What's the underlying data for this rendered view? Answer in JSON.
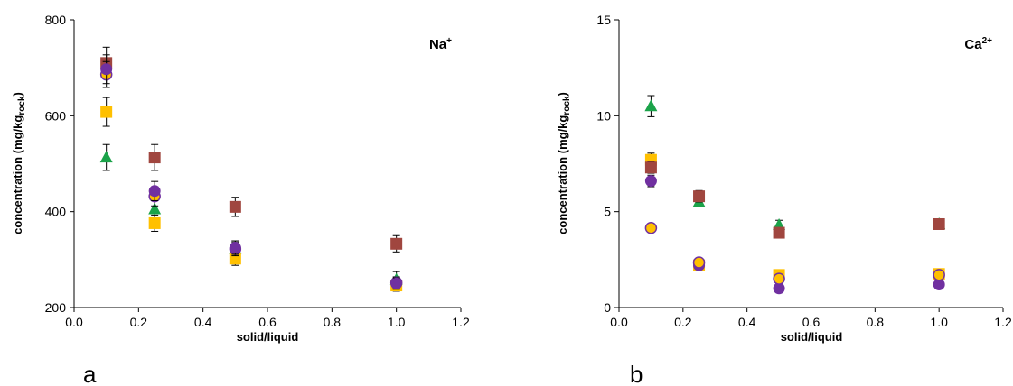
{
  "chart_data": [
    {
      "type": "scatter",
      "panel_label": "a",
      "ion": {
        "base": "Na",
        "sup": "+"
      },
      "xlabel": "solid/liquid",
      "ylabel": {
        "main": "concentration (mg/kg",
        "sub": "rock",
        "close": ")"
      },
      "xlim": [
        0.0,
        1.2
      ],
      "ylim": [
        200,
        800
      ],
      "xticks": [
        0.0,
        0.2,
        0.4,
        0.6,
        0.8,
        1.0,
        1.2
      ],
      "yticks": [
        200,
        400,
        600,
        800
      ],
      "xtick_labels": [
        "0.0",
        "0.2",
        "0.4",
        "0.6",
        "0.8",
        "1.0",
        "1.2"
      ],
      "ytick_labels": [
        "200",
        "400",
        "600",
        "800"
      ],
      "grid": false,
      "series": [
        {
          "color": "#A0463F",
          "marker": "square",
          "points": [
            {
              "x": 0.1,
              "y": 710,
              "err": 33
            },
            {
              "x": 0.25,
              "y": 513,
              "err": 27
            },
            {
              "x": 0.5,
              "y": 410,
              "err": 20
            },
            {
              "x": 1.0,
              "y": 333,
              "err": 17
            }
          ]
        },
        {
          "color": "#1BA34A",
          "marker": "triangle",
          "points": [
            {
              "x": 0.1,
              "y": 513,
              "err": 27
            },
            {
              "x": 0.25,
              "y": 405,
              "err": 20
            },
            {
              "x": 0.5,
              "y": 322,
              "err": 17
            },
            {
              "x": 1.0,
              "y": 258,
              "err": 17
            }
          ]
        },
        {
          "color": "#FFC000",
          "marker": "square",
          "points": [
            {
              "x": 0.1,
              "y": 608,
              "err": 30
            },
            {
              "x": 0.25,
              "y": 376,
              "err": 17
            },
            {
              "x": 0.5,
              "y": 302,
              "err": 14
            },
            {
              "x": 1.0,
              "y": 246,
              "err": 12
            }
          ]
        },
        {
          "color": "#FFC000",
          "stroke": "#7030A0",
          "marker": "circle",
          "points": [
            {
              "x": 0.1,
              "y": 686,
              "err": 27
            },
            {
              "x": 0.25,
              "y": 432,
              "err": 20
            },
            {
              "x": 0.5,
              "y": 322,
              "err": 14
            },
            {
              "x": 1.0,
              "y": 252,
              "err": 12
            }
          ]
        },
        {
          "color": "#7030A0",
          "marker": "circle",
          "points": [
            {
              "x": 0.1,
              "y": 697,
              "err": 30
            },
            {
              "x": 0.25,
              "y": 443,
              "err": 20
            },
            {
              "x": 0.5,
              "y": 325,
              "err": 14
            },
            {
              "x": 1.0,
              "y": 250,
              "err": 12
            }
          ]
        }
      ]
    },
    {
      "type": "scatter",
      "panel_label": "b",
      "ion": {
        "base": "Ca",
        "sup": "2+"
      },
      "xlabel": "solid/liquid",
      "ylabel": {
        "main": "concentration (mg/kg",
        "sub": "rock",
        "close": ")"
      },
      "xlim": [
        0.0,
        1.2
      ],
      "ylim": [
        0,
        15
      ],
      "xticks": [
        0.0,
        0.2,
        0.4,
        0.6,
        0.8,
        1.0,
        1.2
      ],
      "yticks": [
        0,
        5,
        10,
        15
      ],
      "xtick_labels": [
        "0.0",
        "0.2",
        "0.4",
        "0.6",
        "0.8",
        "1.0",
        "1.2"
      ],
      "ytick_labels": [
        "0",
        "5",
        "10",
        "15"
      ],
      "grid": false,
      "series": [
        {
          "color": "#1BA34A",
          "marker": "triangle",
          "points": [
            {
              "x": 0.1,
              "y": 10.5,
              "err": 0.55
            },
            {
              "x": 0.25,
              "y": 5.5,
              "err": 0.25
            },
            {
              "x": 0.5,
              "y": 4.3,
              "err": 0.25
            },
            {
              "x": 1.0,
              "y": 4.35,
              "err": 0.15
            }
          ]
        },
        {
          "color": "#FFC000",
          "marker": "square",
          "points": [
            {
              "x": 0.1,
              "y": 7.7,
              "err": 0.35
            },
            {
              "x": 0.25,
              "y": 2.2,
              "err": 0.12
            },
            {
              "x": 0.5,
              "y": 1.7,
              "err": 0.1
            },
            {
              "x": 1.0,
              "y": 1.75,
              "err": 0.1
            }
          ]
        },
        {
          "color": "#A0463F",
          "marker": "square",
          "points": [
            {
              "x": 0.1,
              "y": 7.3,
              "err": 0.3
            },
            {
              "x": 0.25,
              "y": 5.8,
              "err": 0.3
            },
            {
              "x": 0.5,
              "y": 3.9,
              "err": 0.2
            },
            {
              "x": 1.0,
              "y": 4.35,
              "err": 0.15
            }
          ]
        },
        {
          "color": "#7030A0",
          "marker": "circle",
          "points": [
            {
              "x": 0.1,
              "y": 6.6,
              "err": 0.3
            },
            {
              "x": 0.25,
              "y": 2.2,
              "err": 0.12
            },
            {
              "x": 0.5,
              "y": 1.0,
              "err": 0.08
            },
            {
              "x": 1.0,
              "y": 1.2,
              "err": 0.08
            }
          ]
        },
        {
          "color": "#FFC000",
          "stroke": "#7030A0",
          "marker": "circle",
          "points": [
            {
              "x": 0.1,
              "y": 4.15,
              "err": 0.15
            },
            {
              "x": 0.25,
              "y": 2.35,
              "err": 0.12
            },
            {
              "x": 0.5,
              "y": 1.5,
              "err": 0.1
            },
            {
              "x": 1.0,
              "y": 1.7,
              "err": 0.1
            }
          ]
        }
      ]
    }
  ]
}
